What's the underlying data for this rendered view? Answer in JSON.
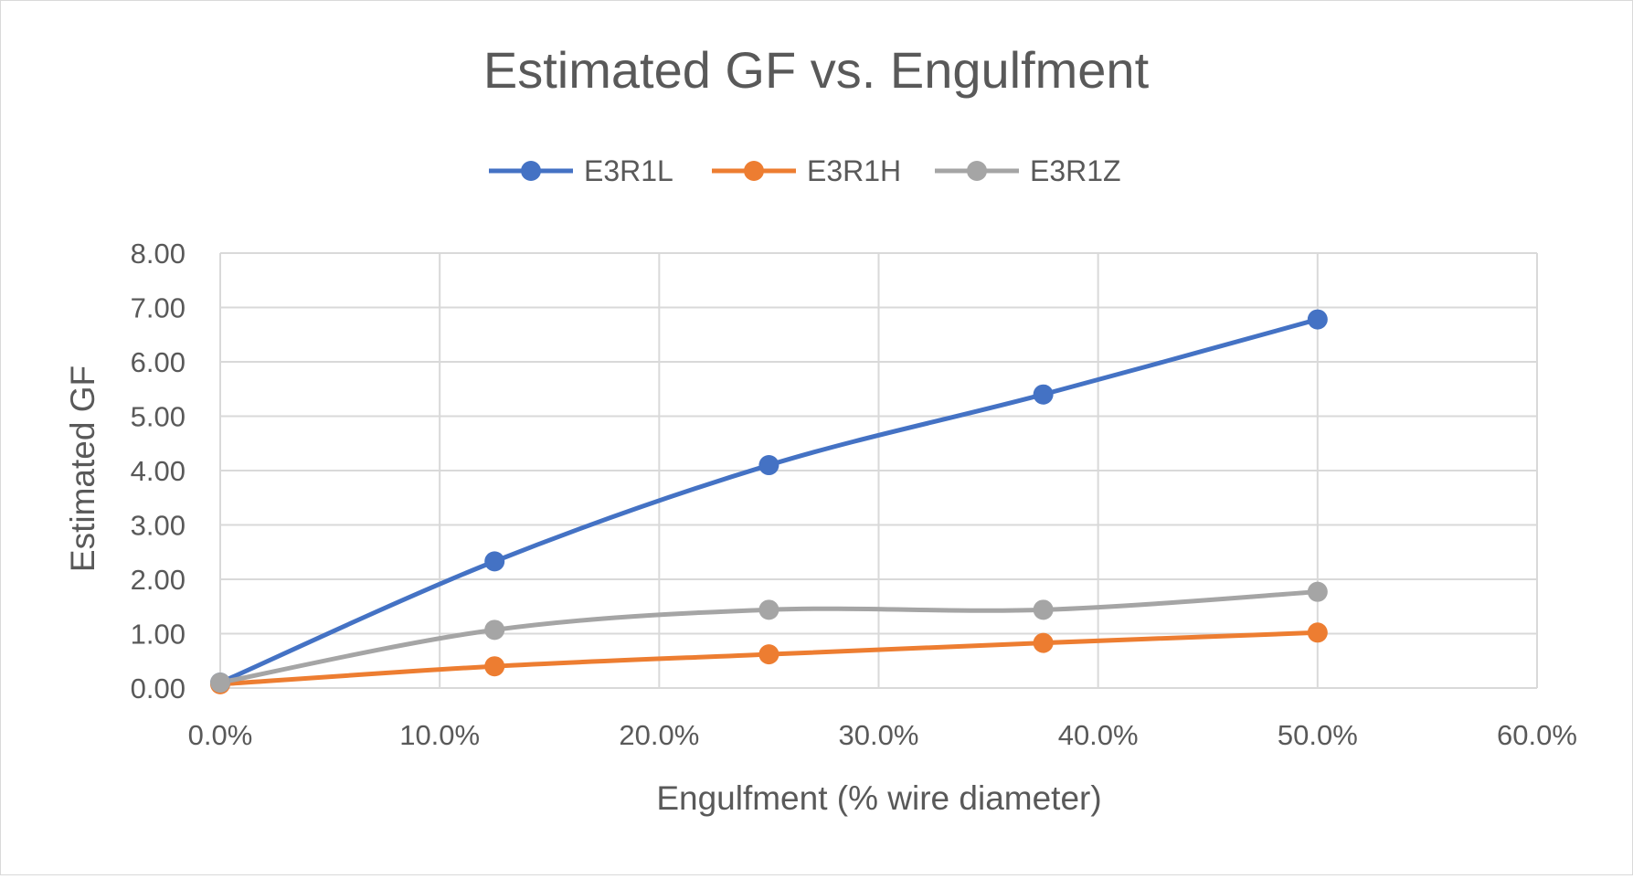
{
  "chart_data": {
    "type": "line",
    "smooth": true,
    "title": "Estimated GF vs. Engulfment",
    "xlabel": "Engulfment (% wire diameter)",
    "ylabel": "Estimated GF",
    "xlim": [
      0,
      0.6
    ],
    "ylim": [
      0,
      8
    ],
    "x_ticks": [
      "0.0%",
      "10.0%",
      "20.0%",
      "30.0%",
      "40.0%",
      "50.0%",
      "60.0%"
    ],
    "y_ticks": [
      "0.00",
      "1.00",
      "2.00",
      "3.00",
      "4.00",
      "5.00",
      "6.00",
      "7.00",
      "8.00"
    ],
    "grid": true,
    "legend_position": "top",
    "x": [
      0,
      0.125,
      0.25,
      0.375,
      0.5
    ],
    "series": [
      {
        "name": "E3R1L",
        "color": "#4472c4",
        "values": [
          0.1,
          2.33,
          4.1,
          5.4,
          6.78
        ]
      },
      {
        "name": "E3R1H",
        "color": "#ed7d31",
        "values": [
          0.07,
          0.4,
          0.62,
          0.83,
          1.02
        ]
      },
      {
        "name": "E3R1Z",
        "color": "#a5a5a5",
        "values": [
          0.1,
          1.07,
          1.44,
          1.44,
          1.77
        ]
      }
    ]
  }
}
